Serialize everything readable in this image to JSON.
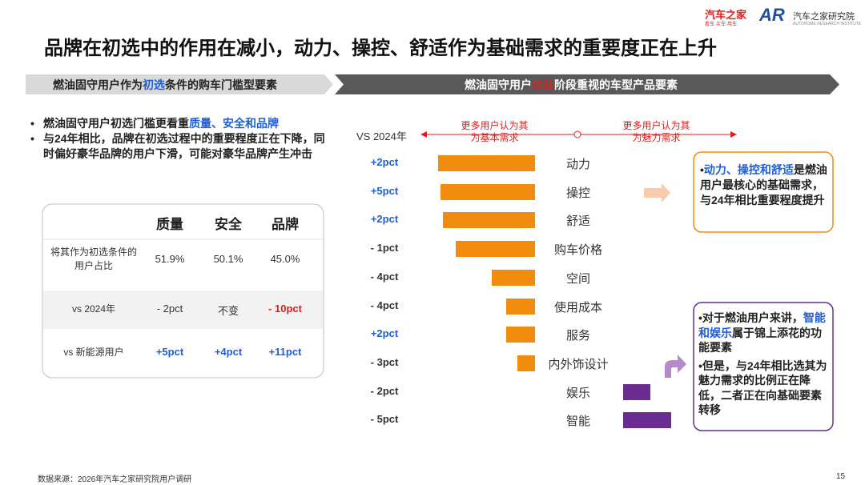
{
  "header": {
    "title": "品牌在初选中的作用在减小，动力、操控、舒适作为基础需求的重要度正在上升",
    "logo_left": "汽车之家",
    "logo_left_sub": "看车·买车·用车",
    "logo_icon": "AR",
    "logo_right": "汽车之家研究院",
    "logo_right_sub": "AUTOHOME RESEARCH INSTITUTE"
  },
  "left_banner": [
    "燃油固守用户作为",
    "初选",
    "条件的购车门槛型要素"
  ],
  "right_banner": [
    "燃油固守用户",
    "对比",
    "阶段重视的车型产品要素"
  ],
  "bullets": [
    [
      "燃油固守用户初选门槛更看重",
      "质量、安全和品牌"
    ],
    [
      "与24年相比，品牌在初选过程中的重要程度正在下降，同时偏好豪华品牌的用户下滑，可能对豪华品牌产生冲击"
    ]
  ],
  "table": {
    "columns": [
      "质量",
      "安全",
      "品牌"
    ],
    "rows": [
      {
        "label": "将其作为初选条件的用户占比",
        "cells": [
          "51.9%",
          "50.1%",
          "45.0%"
        ],
        "colors": [
          "#333333",
          "#333333",
          "#333333"
        ]
      },
      {
        "label": "vs 2024年",
        "cells": [
          "- 2pct",
          "不变",
          "- 10pct"
        ],
        "colors": [
          "#333333",
          "#333333",
          "#e01e1e"
        ]
      },
      {
        "label": "vs 新能源用户",
        "cells": [
          "+5pct",
          "+4pct",
          "+11pct"
        ],
        "colors": [
          "#1f5fd6",
          "#1f5fd6",
          "#1f5fd6"
        ]
      }
    ]
  },
  "chart": {
    "header": "VS 2024年",
    "left_label": "更多用户认为其为基本需求",
    "right_label": "更多用户认为其为魅力需求",
    "items": [
      {
        "name": "动力",
        "change": "+2pct",
        "change_color": "#1f5fd6",
        "value": 121,
        "color": "#f28c0f",
        "align": "left"
      },
      {
        "name": "操控",
        "change": "+5pct",
        "change_color": "#1f5fd6",
        "value": 118,
        "color": "#f28c0f",
        "align": "left"
      },
      {
        "name": "舒适",
        "change": "+2pct",
        "change_color": "#1f5fd6",
        "value": 115,
        "color": "#f28c0f",
        "align": "left"
      },
      {
        "name": "购车价格",
        "change": "- 1pct",
        "change_color": "#333333",
        "value": 99,
        "color": "#f28c0f",
        "align": "left"
      },
      {
        "name": "空间",
        "change": "- 4pct",
        "change_color": "#333333",
        "value": 54,
        "color": "#f28c0f",
        "align": "left"
      },
      {
        "name": "使用成本",
        "change": "- 4pct",
        "change_color": "#333333",
        "value": 36,
        "color": "#f28c0f",
        "align": "left"
      },
      {
        "name": "服务",
        "change": "+2pct",
        "change_color": "#1f5fd6",
        "value": 36,
        "color": "#f28c0f",
        "align": "left"
      },
      {
        "name": "内外饰设计",
        "change": "- 3pct",
        "change_color": "#333333",
        "value": 22,
        "color": "#f28c0f",
        "align": "left"
      },
      {
        "name": "娱乐",
        "change": "- 2pct",
        "change_color": "#333333",
        "value": 34,
        "color": "#6a2c91",
        "align": "right"
      },
      {
        "name": "智能",
        "change": "- 5pct",
        "change_color": "#333333",
        "value": 60,
        "color": "#6a2c91",
        "align": "right"
      }
    ]
  },
  "callout_top": [
    "动力、操控和舒适",
    "是燃油用户最核心的基础需求，与24年相比重要程度提升"
  ],
  "callout_bottom": [
    [
      "对于燃油用户来讲，",
      "智能和娱乐",
      "属于锦上添花的功能要素"
    ],
    [
      "但是，与24年相比选其为魅力需求的比例正在降低，二者正在向基础要素转移"
    ]
  ],
  "footer": {
    "source": "数据来源：2026年汽车之家研究院用户调研",
    "page": "15"
  }
}
